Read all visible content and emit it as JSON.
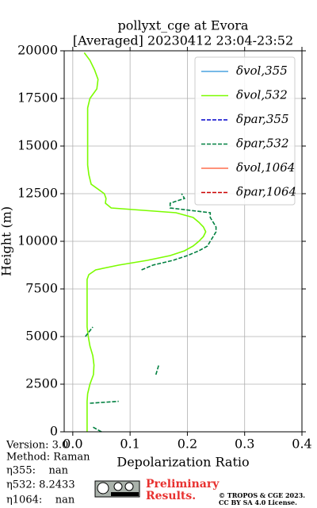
{
  "chart_data": {
    "type": "profile",
    "title": "pollyxt_cge at Evora",
    "subtitle": "[Averaged] 20230412 23:04-23:52",
    "x_label": "Depolarization Ratio",
    "y_label": "Height (m)",
    "xlim": [
      -0.015,
      0.4
    ],
    "ylim": [
      0,
      20000
    ],
    "xticks": [
      {
        "value": 0,
        "label": "0.0"
      },
      0.1,
      0.2,
      0.3,
      0.4
    ],
    "yticks": [
      0,
      2500,
      5000,
      7500,
      10000,
      12500,
      15000,
      17500,
      20000
    ],
    "grid": true,
    "legend": "upper right",
    "heights": [
      0,
      250,
      500,
      1000,
      1500,
      1600,
      2000,
      2500,
      3000,
      3500,
      4000,
      4500,
      5000,
      5500,
      6000,
      6500,
      7000,
      7500,
      8000,
      8250,
      8500,
      8750,
      9000,
      9250,
      9500,
      9750,
      10000,
      10250,
      10500,
      10750,
      11000,
      11250,
      11500,
      11750,
      12000,
      12250,
      12500,
      13000,
      13500,
      14000,
      14500,
      15000,
      15500,
      16000,
      16500,
      17000,
      17500,
      18000,
      18500,
      19000,
      19500,
      19900
    ],
    "series": [
      {
        "name": "δvol,355",
        "color": "#4aa3df",
        "dash": false,
        "values": [
          null,
          null,
          null,
          null,
          null,
          null,
          null,
          null,
          null,
          null,
          null,
          null,
          null,
          null,
          null,
          null,
          null,
          null,
          null,
          null,
          null,
          null,
          null,
          null,
          null,
          null,
          null,
          null,
          null,
          null,
          null,
          null,
          null,
          null,
          null,
          null,
          null,
          null,
          null,
          null,
          null,
          null,
          null,
          null,
          null,
          null,
          null,
          null,
          null,
          null,
          null,
          null
        ]
      },
      {
        "name": "δvol,532",
        "color": "#7cfc00",
        "dash": false,
        "values": [
          0.025,
          0.025,
          0.025,
          0.025,
          0.025,
          0.025,
          0.026,
          0.03,
          0.036,
          0.037,
          0.035,
          0.03,
          0.027,
          0.025,
          0.025,
          0.025,
          0.025,
          0.025,
          0.025,
          0.028,
          0.04,
          0.08,
          0.13,
          0.17,
          0.195,
          0.21,
          0.22,
          0.228,
          0.232,
          0.228,
          0.22,
          0.21,
          0.18,
          0.067,
          0.057,
          0.058,
          0.055,
          0.032,
          0.028,
          0.026,
          0.026,
          0.026,
          0.026,
          0.026,
          0.026,
          0.026,
          0.03,
          0.042,
          0.044,
          0.038,
          0.03,
          0.02
        ]
      },
      {
        "name": "δpar,355",
        "color": "#0000cc",
        "dash": true,
        "values": [
          null,
          null,
          null,
          null,
          null,
          null,
          null,
          null,
          null,
          null,
          null,
          null,
          null,
          null,
          null,
          null,
          null,
          null,
          null,
          null,
          null,
          null,
          null,
          null,
          null,
          null,
          null,
          null,
          null,
          null,
          null,
          null,
          null,
          null,
          null,
          null,
          null,
          null,
          null,
          null,
          null,
          null,
          null,
          null,
          null,
          null,
          null,
          null,
          null,
          null,
          null,
          null
        ]
      },
      {
        "name": "δpar,532",
        "color": "#008040",
        "dash": true,
        "values": [
          0.05,
          0.035,
          null,
          null,
          0.03,
          0.08,
          null,
          null,
          0.145,
          0.15,
          null,
          null,
          0.022,
          0.035,
          null,
          null,
          null,
          null,
          null,
          null,
          0.12,
          0.14,
          0.175,
          0.2,
          0.22,
          0.235,
          0.24,
          0.245,
          0.25,
          0.25,
          0.245,
          0.24,
          0.24,
          0.17,
          0.17,
          0.195,
          0.19,
          null,
          null,
          null,
          null,
          null,
          null,
          null,
          null,
          null,
          null,
          null,
          null,
          null,
          null,
          null
        ]
      },
      {
        "name": "δvol,1064",
        "color": "#ff6f4f",
        "dash": false,
        "values": [
          null,
          null,
          null,
          null,
          null,
          null,
          null,
          null,
          null,
          null,
          null,
          null,
          null,
          null,
          null,
          null,
          null,
          null,
          null,
          null,
          null,
          null,
          null,
          null,
          null,
          null,
          null,
          null,
          null,
          null,
          null,
          null,
          null,
          null,
          null,
          null,
          null,
          null,
          null,
          null,
          null,
          null,
          null,
          null,
          null,
          null,
          null,
          null,
          null,
          null,
          null,
          null
        ]
      },
      {
        "name": "δpar,1064",
        "color": "#cc0000",
        "dash": true,
        "values": [
          null,
          null,
          null,
          null,
          null,
          null,
          null,
          null,
          null,
          null,
          null,
          null,
          null,
          null,
          null,
          null,
          null,
          null,
          null,
          null,
          null,
          null,
          null,
          null,
          null,
          null,
          null,
          null,
          null,
          null,
          null,
          null,
          null,
          null,
          null,
          null,
          null,
          null,
          null,
          null,
          null,
          null,
          null,
          null,
          null,
          null,
          null,
          null,
          null,
          null,
          null,
          null
        ]
      }
    ]
  },
  "info": {
    "version": "Version: 3.0",
    "method": "Method: Raman",
    "eta355": "η355:    nan",
    "eta532": "η532: 8.2433",
    "eta1064": "η1064:    nan"
  },
  "badge": {
    "preliminary": "Preliminary",
    "results": "Results.",
    "copyright": "© TROPOS & CGE 2023.",
    "license": "CC BY SA 4.0 License."
  }
}
